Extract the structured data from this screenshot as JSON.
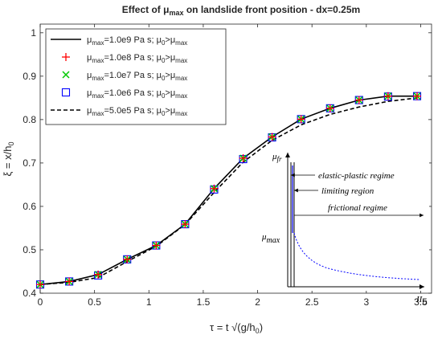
{
  "chart_data": {
    "type": "line",
    "title": "Effect of μmax on landslide front position - dx=0.25m",
    "title_parts": [
      "Effect of ",
      "μ",
      "max",
      " on landslide front position - dx=0.25m"
    ],
    "xlabel": "τ = t √(g/h0)",
    "xlabel_parts": [
      "τ = t √(g/h",
      "0",
      ")"
    ],
    "ylabel": "ξ = x/h0",
    "ylabel_parts": [
      "ξ = x/h",
      "0"
    ],
    "xlim": [
      0,
      3.6
    ],
    "ylim": [
      0.4,
      1.02
    ],
    "x_ticks": [
      "0",
      "0.5",
      "1",
      "1.5",
      "2",
      "2.5",
      "3",
      "3.5"
    ],
    "x_tick_values": [
      0,
      0.5,
      1,
      1.5,
      2,
      2.5,
      3,
      3.5
    ],
    "y_ticks": [
      "0.4",
      "0.5",
      "0.6",
      "0.7",
      "0.8",
      "0.9",
      "1"
    ],
    "y_tick_values": [
      0.4,
      0.5,
      0.6,
      0.7,
      0.8,
      0.9,
      1.0
    ],
    "grid": false,
    "legend_position": "top-left",
    "x": [
      0,
      0.267,
      0.533,
      0.8,
      1.067,
      1.333,
      1.6,
      1.867,
      2.133,
      2.4,
      2.667,
      2.933,
      3.2,
      3.467
    ],
    "series": [
      {
        "name": "μmax=1.0e9 Pa s; μ0>μmax",
        "name_parts": [
          "μ",
          "max",
          "=1.0e9 Pa s; μ",
          "0",
          ">μ",
          "max"
        ],
        "style": "solid-line",
        "color": "#000000",
        "values": [
          0.42,
          0.427,
          0.443,
          0.478,
          0.51,
          0.559,
          0.641,
          0.711,
          0.76,
          0.801,
          0.826,
          0.845,
          0.854,
          0.854
        ]
      },
      {
        "name": "μmax=1.0e8 Pa s; μ0>μmax",
        "name_parts": [
          "μ",
          "max",
          "=1.0e8 Pa s; μ",
          "0",
          ">μ",
          "max"
        ],
        "style": "plus-marker",
        "color": "#ff0000",
        "values": [
          0.42,
          0.427,
          0.443,
          0.478,
          0.51,
          0.559,
          0.641,
          0.711,
          0.76,
          0.801,
          0.826,
          0.845,
          0.854,
          0.854
        ]
      },
      {
        "name": "μmax=1.0e7 Pa s; μ0>μmax",
        "name_parts": [
          "μ",
          "max",
          "=1.0e7 Pa s; μ",
          "0",
          ">μ",
          "max"
        ],
        "style": "x-marker",
        "color": "#00c800",
        "values": [
          0.42,
          0.427,
          0.443,
          0.478,
          0.51,
          0.559,
          0.641,
          0.711,
          0.76,
          0.801,
          0.826,
          0.845,
          0.854,
          0.854
        ]
      },
      {
        "name": "μmax=1.0e6 Pa s; μ0>μmax",
        "name_parts": [
          "μ",
          "max",
          "=1.0e6 Pa s; μ",
          "0",
          ">μ",
          "max"
        ],
        "style": "square-marker",
        "color": "#0000ff",
        "values": [
          0.42,
          0.427,
          0.441,
          0.478,
          0.51,
          0.559,
          0.639,
          0.709,
          0.759,
          0.801,
          0.826,
          0.845,
          0.853,
          0.854
        ]
      },
      {
        "name": "μmax=5.0e5 Pa s; μ0>μmax",
        "name_parts": [
          "μ",
          "max",
          "=5.0e5 Pa s; μ",
          "0",
          ">μ",
          "max"
        ],
        "style": "dashed-line",
        "color": "#000000",
        "values": [
          0.42,
          0.425,
          0.436,
          0.473,
          0.508,
          0.558,
          0.632,
          0.702,
          0.752,
          0.788,
          0.812,
          0.829,
          0.842,
          0.85
        ]
      }
    ],
    "inset": {
      "y_axis_label": "μfr",
      "y_axis_label_parts": [
        "μ",
        "fr"
      ],
      "x_axis_label": "IID",
      "x_axis_label_parts": [
        "II",
        "D"
      ],
      "level_label": "μmax",
      "level_label_parts": [
        "μ",
        "max"
      ],
      "annotations": [
        "elastic-plastic regime",
        "limiting region",
        "frictional regime"
      ],
      "curve_color": "#0000ff"
    }
  }
}
